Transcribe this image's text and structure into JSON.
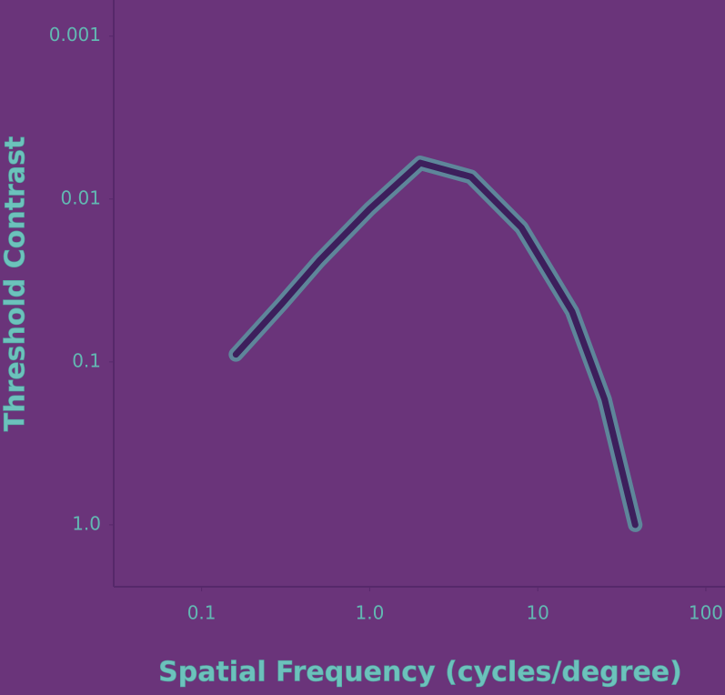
{
  "chart_data": {
    "type": "line",
    "x_label": "Spatial Frequency (cycles/degree)",
    "y_label": "Threshold Contrast",
    "x": [
      0.16,
      0.3,
      0.5,
      1,
      2,
      4,
      8,
      16,
      25,
      38
    ],
    "series": [
      {
        "color": "#3d1f5c",
        "values": [
          0.09,
          0.044,
          0.024,
          0.0115,
          0.006,
          0.0073,
          0.015,
          0.049,
          0.17,
          1.0
        ]
      }
    ],
    "xlim": [
      0.03,
      130
    ],
    "xticks": [
      0.1,
      {
        "value": 1,
        "label": "1.0"
      },
      10,
      100
    ],
    "x_log": true,
    "ylim": [
      2.4,
      0.0006
    ],
    "yticks": [
      0.001,
      0.01,
      0.1,
      {
        "value": 1,
        "label": "1.0"
      }
    ],
    "y_log": true
  }
}
